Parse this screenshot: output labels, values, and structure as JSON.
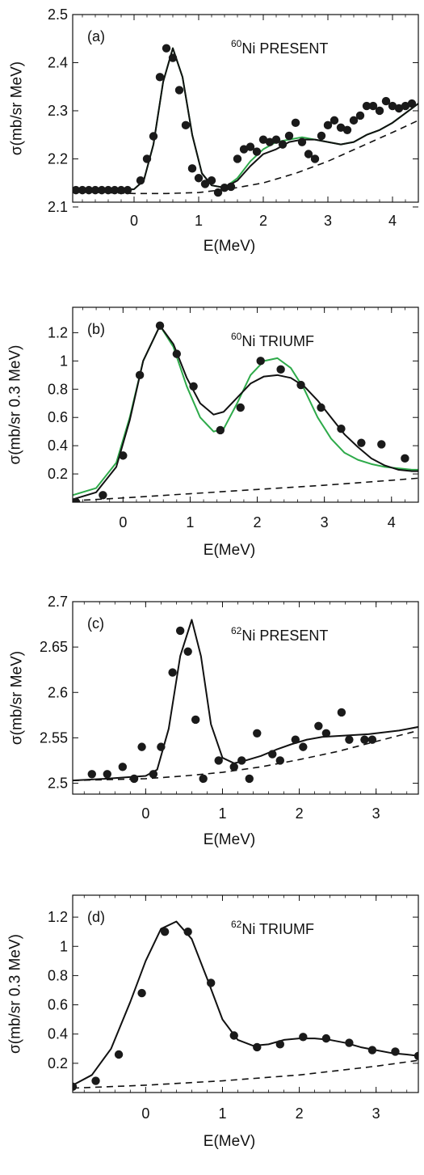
{
  "colors": {
    "data": "#1a1a1a",
    "fit_black": "#111111",
    "fit_green": "#2eaa4a",
    "background": "#d13d3d"
  },
  "chart_data": [
    {
      "type": "scatter",
      "panel_label": "(a)",
      "isotope_mass": "60",
      "isotope_text": "Ni PRESENT",
      "xlabel": "E(MeV)",
      "ylabel": "σ(mb/sr MeV)",
      "xlim": [
        -0.95,
        4.4
      ],
      "ylim": [
        2.11,
        2.5
      ],
      "xticks": [
        0,
        1,
        2,
        3,
        4
      ],
      "yticks": [
        2.1,
        2.2,
        2.3,
        2.4,
        2.5
      ],
      "ytick_labels": [
        "2.1",
        "2.2",
        "2.3",
        "2.4",
        "2.5"
      ],
      "grid": false,
      "series": [
        {
          "kind": "points",
          "x": [
            -0.9,
            -0.8,
            -0.7,
            -0.6,
            -0.5,
            -0.4,
            -0.3,
            -0.2,
            -0.1,
            0.1,
            0.2,
            0.3,
            0.4,
            0.5,
            0.6,
            0.7,
            0.8,
            0.9,
            1.0,
            1.1,
            1.2,
            1.3,
            1.4,
            1.5,
            1.6,
            1.7,
            1.8,
            1.9,
            2.0,
            2.1,
            2.2,
            2.3,
            2.4,
            2.5,
            2.6,
            2.7,
            2.8,
            2.9,
            3.0,
            3.1,
            3.2,
            3.3,
            3.4,
            3.5,
            3.6,
            3.7,
            3.8,
            3.9,
            4.0,
            4.1,
            4.2,
            4.3
          ],
          "y": [
            2.135,
            2.135,
            2.135,
            2.135,
            2.135,
            2.135,
            2.135,
            2.135,
            2.135,
            2.155,
            2.2,
            2.247,
            2.37,
            2.43,
            2.41,
            2.343,
            2.27,
            2.18,
            2.16,
            2.148,
            2.155,
            2.13,
            2.14,
            2.142,
            2.2,
            2.22,
            2.225,
            2.215,
            2.24,
            2.235,
            2.24,
            2.23,
            2.248,
            2.275,
            2.235,
            2.21,
            2.2,
            2.248,
            2.27,
            2.28,
            2.265,
            2.26,
            2.28,
            2.29,
            2.31,
            2.31,
            2.3,
            2.32,
            2.31,
            2.305,
            2.31,
            2.315
          ]
        },
        {
          "kind": "line",
          "style": "dashed",
          "color": "black",
          "x": [
            -0.95,
            -0.5,
            0,
            0.5,
            1,
            1.5,
            2,
            2.5,
            3,
            3.5,
            4,
            4.4
          ],
          "y": [
            2.132,
            2.13,
            2.128,
            2.128,
            2.13,
            2.138,
            2.15,
            2.17,
            2.195,
            2.225,
            2.255,
            2.28
          ]
        },
        {
          "kind": "line",
          "style": "solid",
          "color": "green",
          "x": [
            -0.95,
            -0.3,
            0,
            0.15,
            0.3,
            0.45,
            0.6,
            0.75,
            0.9,
            1.05,
            1.2,
            1.4,
            1.6,
            1.8,
            2.0,
            2.2,
            2.4,
            2.6,
            2.8,
            3.0,
            3.2,
            3.4,
            3.6,
            3.8,
            4.0,
            4.2,
            4.4
          ],
          "y": [
            2.135,
            2.135,
            2.137,
            2.155,
            2.23,
            2.36,
            2.43,
            2.37,
            2.25,
            2.17,
            2.145,
            2.14,
            2.16,
            2.195,
            2.22,
            2.235,
            2.24,
            2.245,
            2.24,
            2.235,
            2.23,
            2.235,
            2.25,
            2.26,
            2.275,
            2.295,
            2.315
          ]
        },
        {
          "kind": "line",
          "style": "solid",
          "color": "black",
          "x": [
            -0.95,
            -0.3,
            0,
            0.15,
            0.3,
            0.45,
            0.6,
            0.75,
            0.9,
            1.05,
            1.2,
            1.4,
            1.6,
            1.8,
            2.0,
            2.2,
            2.4,
            2.6,
            2.8,
            3.0,
            3.2,
            3.4,
            3.6,
            3.8,
            4.0,
            4.2,
            4.4
          ],
          "y": [
            2.135,
            2.135,
            2.137,
            2.155,
            2.23,
            2.36,
            2.43,
            2.37,
            2.25,
            2.17,
            2.145,
            2.14,
            2.155,
            2.185,
            2.21,
            2.22,
            2.235,
            2.24,
            2.24,
            2.235,
            2.23,
            2.235,
            2.25,
            2.26,
            2.275,
            2.295,
            2.315
          ]
        }
      ]
    },
    {
      "type": "scatter",
      "panel_label": "(b)",
      "isotope_mass": "60",
      "isotope_text": "Ni TRIUMF",
      "xlabel": "E(MeV)",
      "ylabel": "σ(mb/sr 0.3 MeV)",
      "xlim": [
        -0.75,
        4.4
      ],
      "ylim": [
        0,
        1.38
      ],
      "xticks": [
        0,
        1,
        2,
        3,
        4
      ],
      "yticks": [
        0.2,
        0.4,
        0.6,
        0.8,
        1.0,
        1.2
      ],
      "ytick_labels": [
        "0.2",
        "0.4",
        "0.6",
        "0.8",
        "1",
        "1.2"
      ],
      "grid": false,
      "series": [
        {
          "kind": "points",
          "x": [
            -0.7,
            -0.3,
            0,
            0.25,
            0.55,
            0.8,
            1.05,
            1.45,
            1.75,
            2.05,
            2.35,
            2.65,
            2.95,
            3.25,
            3.55,
            3.85,
            4.2
          ],
          "y": [
            0.0,
            0.05,
            0.33,
            0.9,
            1.25,
            1.05,
            0.82,
            0.51,
            0.67,
            1.0,
            0.94,
            0.83,
            0.67,
            0.52,
            0.42,
            0.41,
            0.31
          ]
        },
        {
          "kind": "line",
          "style": "dashed",
          "color": "black",
          "x": [
            -0.75,
            0,
            1,
            2,
            3,
            4,
            4.4
          ],
          "y": [
            0.01,
            0.03,
            0.06,
            0.09,
            0.12,
            0.155,
            0.17
          ]
        },
        {
          "kind": "line",
          "style": "solid",
          "color": "green",
          "x": [
            -0.75,
            -0.4,
            -0.1,
            0.1,
            0.3,
            0.55,
            0.75,
            0.95,
            1.15,
            1.35,
            1.5,
            1.7,
            1.9,
            2.1,
            2.3,
            2.5,
            2.7,
            2.9,
            3.1,
            3.3,
            3.5,
            3.7,
            3.9,
            4.1,
            4.3,
            4.4
          ],
          "y": [
            0.05,
            0.1,
            0.28,
            0.6,
            1.0,
            1.25,
            1.1,
            0.82,
            0.6,
            0.5,
            0.52,
            0.7,
            0.9,
            1.0,
            1.02,
            0.95,
            0.8,
            0.6,
            0.45,
            0.35,
            0.3,
            0.27,
            0.25,
            0.24,
            0.23,
            0.23
          ]
        },
        {
          "kind": "line",
          "style": "solid",
          "color": "black",
          "x": [
            -0.75,
            -0.4,
            -0.1,
            0.1,
            0.3,
            0.55,
            0.75,
            0.95,
            1.15,
            1.35,
            1.5,
            1.7,
            1.9,
            2.1,
            2.3,
            2.5,
            2.7,
            2.9,
            3.1,
            3.3,
            3.5,
            3.7,
            3.9,
            4.1,
            4.3,
            4.4
          ],
          "y": [
            0.02,
            0.07,
            0.25,
            0.58,
            1.0,
            1.25,
            1.12,
            0.88,
            0.7,
            0.62,
            0.64,
            0.74,
            0.84,
            0.89,
            0.9,
            0.88,
            0.82,
            0.72,
            0.6,
            0.48,
            0.39,
            0.31,
            0.26,
            0.23,
            0.22,
            0.22
          ]
        }
      ]
    },
    {
      "type": "scatter",
      "panel_label": "(c)",
      "isotope_mass": "62",
      "isotope_text": "Ni PRESENT",
      "xlabel": "E(MeV)",
      "ylabel": "σ(mb/sr MeV)",
      "xlim": [
        -0.95,
        3.55
      ],
      "ylim": [
        2.488,
        2.7
      ],
      "xticks": [
        0,
        1,
        2,
        3
      ],
      "yticks": [
        2.5,
        2.55,
        2.6,
        2.65,
        2.7
      ],
      "ytick_labels": [
        "2.5",
        "2.55",
        "2.6",
        "2.65",
        "2.7"
      ],
      "grid": false,
      "series": [
        {
          "kind": "points",
          "x": [
            -0.7,
            -0.5,
            -0.3,
            -0.15,
            -0.05,
            0.1,
            0.2,
            0.35,
            0.45,
            0.55,
            0.65,
            0.75,
            0.95,
            1.15,
            1.25,
            1.35,
            1.45,
            1.65,
            1.75,
            1.95,
            2.05,
            2.25,
            2.35,
            2.55,
            2.65,
            2.85,
            2.95
          ],
          "y": [
            2.51,
            2.51,
            2.518,
            2.505,
            2.54,
            2.51,
            2.54,
            2.622,
            2.668,
            2.645,
            2.57,
            2.505,
            2.525,
            2.518,
            2.525,
            2.505,
            2.555,
            2.532,
            2.525,
            2.548,
            2.54,
            2.563,
            2.555,
            2.578,
            2.548,
            2.548,
            2.548
          ]
        },
        {
          "kind": "line",
          "style": "dashed",
          "color": "black",
          "x": [
            -0.95,
            0,
            0.5,
            1,
            1.5,
            2,
            2.5,
            3,
            3.55
          ],
          "y": [
            2.503,
            2.505,
            2.508,
            2.512,
            2.518,
            2.526,
            2.535,
            2.546,
            2.558
          ]
        },
        {
          "kind": "line",
          "style": "solid",
          "color": "black",
          "x": [
            -0.95,
            -0.5,
            0,
            0.15,
            0.3,
            0.45,
            0.6,
            0.72,
            0.85,
            1.0,
            1.15,
            1.3,
            1.5,
            1.7,
            1.9,
            2.1,
            2.3,
            2.5,
            2.7,
            2.9,
            3.1,
            3.3,
            3.55
          ],
          "y": [
            2.503,
            2.505,
            2.508,
            2.515,
            2.56,
            2.64,
            2.68,
            2.64,
            2.565,
            2.528,
            2.522,
            2.525,
            2.53,
            2.537,
            2.543,
            2.548,
            2.551,
            2.552,
            2.553,
            2.554,
            2.556,
            2.558,
            2.562
          ]
        }
      ]
    },
    {
      "type": "scatter",
      "panel_label": "(d)",
      "isotope_mass": "62",
      "isotope_text": "Ni TRIUMF",
      "xlabel": "E(MeV)",
      "ylabel": "σ(mb/sr 0.3 MeV)",
      "xlim": [
        -0.95,
        3.55
      ],
      "ylim": [
        0,
        1.35
      ],
      "xticks": [
        0,
        1,
        2,
        3
      ],
      "yticks": [
        0.2,
        0.4,
        0.6,
        0.8,
        1.0,
        1.2
      ],
      "ytick_labels": [
        "0.2",
        "0.4",
        "0.6",
        "0.8",
        "1",
        "1.2"
      ],
      "grid": false,
      "series": [
        {
          "kind": "points",
          "x": [
            -0.95,
            -0.65,
            -0.35,
            -0.05,
            0.25,
            0.55,
            0.85,
            1.15,
            1.45,
            1.75,
            2.05,
            2.35,
            2.65,
            2.95,
            3.25,
            3.55
          ],
          "y": [
            0.04,
            0.08,
            0.26,
            0.68,
            1.1,
            1.1,
            0.75,
            0.39,
            0.31,
            0.33,
            0.38,
            0.37,
            0.34,
            0.29,
            0.28,
            0.25
          ]
        },
        {
          "kind": "line",
          "style": "dashed",
          "color": "black",
          "x": [
            -0.95,
            0,
            1,
            2,
            3,
            3.55
          ],
          "y": [
            0.03,
            0.05,
            0.08,
            0.12,
            0.18,
            0.22
          ]
        },
        {
          "kind": "line",
          "style": "solid",
          "color": "black",
          "x": [
            -0.95,
            -0.7,
            -0.45,
            -0.2,
            0,
            0.2,
            0.4,
            0.6,
            0.8,
            1.0,
            1.2,
            1.4,
            1.6,
            1.8,
            2.0,
            2.2,
            2.4,
            2.6,
            2.8,
            3.0,
            3.2,
            3.4,
            3.55
          ],
          "y": [
            0.05,
            0.12,
            0.3,
            0.62,
            0.9,
            1.12,
            1.17,
            1.05,
            0.78,
            0.5,
            0.36,
            0.32,
            0.33,
            0.36,
            0.37,
            0.37,
            0.36,
            0.34,
            0.31,
            0.29,
            0.27,
            0.26,
            0.25
          ]
        }
      ]
    }
  ]
}
